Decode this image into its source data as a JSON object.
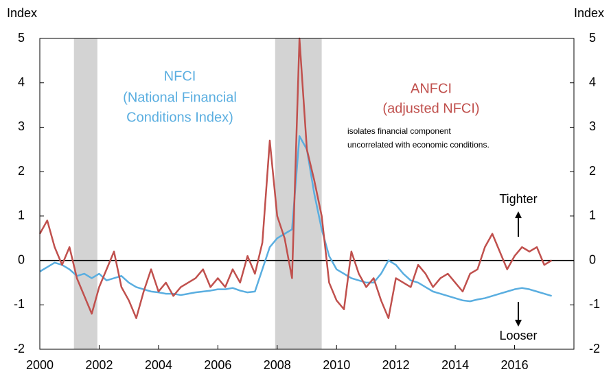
{
  "chart_data": {
    "type": "line",
    "y_label": "Index",
    "y2_label": "Index",
    "x": [
      2000,
      2000.25,
      2000.5,
      2000.75,
      2001,
      2001.25,
      2001.5,
      2001.75,
      2002,
      2002.25,
      2002.5,
      2002.75,
      2003,
      2003.25,
      2003.5,
      2003.75,
      2004,
      2004.25,
      2004.5,
      2004.75,
      2005,
      2005.25,
      2005.5,
      2005.75,
      2006,
      2006.25,
      2006.5,
      2006.75,
      2007,
      2007.25,
      2007.5,
      2007.75,
      2008,
      2008.25,
      2008.5,
      2008.75,
      2009,
      2009.25,
      2009.5,
      2009.75,
      2010,
      2010.25,
      2010.5,
      2010.75,
      2011,
      2011.25,
      2011.5,
      2011.75,
      2012,
      2012.25,
      2012.5,
      2012.75,
      2013,
      2013.25,
      2013.5,
      2013.75,
      2014,
      2014.25,
      2014.5,
      2014.75,
      2015,
      2015.25,
      2015.5,
      2015.75,
      2016,
      2016.25,
      2016.5,
      2016.75,
      2017,
      2017.25
    ],
    "series": [
      {
        "name": "NFCI",
        "color": "#5aaee0",
        "values": [
          -0.25,
          -0.15,
          -0.05,
          -0.1,
          -0.2,
          -0.35,
          -0.3,
          -0.4,
          -0.3,
          -0.45,
          -0.4,
          -0.35,
          -0.5,
          -0.6,
          -0.65,
          -0.7,
          -0.72,
          -0.75,
          -0.75,
          -0.78,
          -0.75,
          -0.72,
          -0.7,
          -0.68,
          -0.65,
          -0.65,
          -0.62,
          -0.68,
          -0.72,
          -0.7,
          -0.2,
          0.3,
          0.5,
          0.6,
          0.7,
          2.8,
          2.5,
          1.5,
          0.7,
          0.1,
          -0.2,
          -0.3,
          -0.4,
          -0.45,
          -0.5,
          -0.5,
          -0.3,
          0.0,
          -0.1,
          -0.3,
          -0.45,
          -0.5,
          -0.6,
          -0.7,
          -0.75,
          -0.8,
          -0.85,
          -0.9,
          -0.92,
          -0.88,
          -0.85,
          -0.8,
          -0.75,
          -0.7,
          -0.65,
          -0.62,
          -0.65,
          -0.7,
          -0.75,
          -0.8
        ]
      },
      {
        "name": "ANFCI",
        "color": "#c0504d",
        "values": [
          0.6,
          0.9,
          0.3,
          -0.1,
          0.3,
          -0.4,
          -0.8,
          -1.2,
          -0.6,
          -0.2,
          0.2,
          -0.6,
          -0.9,
          -1.3,
          -0.7,
          -0.2,
          -0.7,
          -0.5,
          -0.8,
          -0.6,
          -0.5,
          -0.4,
          -0.2,
          -0.6,
          -0.4,
          -0.6,
          -0.2,
          -0.5,
          0.1,
          -0.3,
          0.4,
          2.7,
          1.0,
          0.5,
          -0.4,
          5.0,
          2.5,
          1.8,
          1.0,
          -0.5,
          -0.9,
          -1.1,
          0.2,
          -0.3,
          -0.6,
          -0.4,
          -0.9,
          -1.3,
          -0.4,
          -0.5,
          -0.6,
          -0.1,
          -0.3,
          -0.6,
          -0.4,
          -0.3,
          -0.5,
          -0.7,
          -0.3,
          -0.2,
          0.3,
          0.6,
          0.2,
          -0.2,
          0.1,
          0.3,
          0.2,
          0.3,
          -0.1,
          0.0
        ]
      }
    ],
    "recessions": [
      [
        2001.15,
        2001.94
      ],
      [
        2007.93,
        2009.5
      ]
    ],
    "xlim": [
      2000,
      2018
    ],
    "xticks": [
      2000,
      2002,
      2004,
      2006,
      2008,
      2010,
      2012,
      2014,
      2016
    ],
    "ylim": [
      -2,
      5
    ],
    "yticks": [
      -2,
      -1,
      0,
      1,
      2,
      3,
      4,
      5
    ],
    "y2lim": [
      -2,
      5
    ],
    "y2ticks": [
      -2,
      -1,
      0,
      1,
      2,
      3,
      4,
      5
    ],
    "annotations": [
      "NFCI",
      "(National Financial",
      "Conditions Index)",
      "ANFCI",
      "(adjusted NFCI)",
      "isolates financial component",
      "uncorrelated with economic conditions.",
      "Tighter",
      "Looser"
    ]
  }
}
